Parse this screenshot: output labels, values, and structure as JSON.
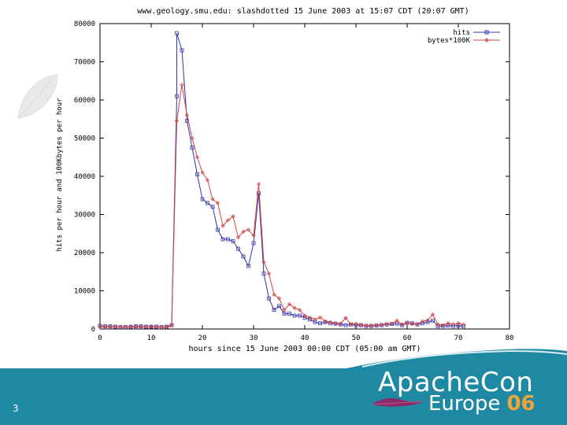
{
  "slide": {
    "number": "3"
  },
  "brand": {
    "line1": "ApacheCon",
    "line2": "Europe",
    "year": "06",
    "accent": "#f2a33a",
    "band_color": "#1f89a4"
  },
  "chart_data": {
    "type": "line",
    "title": "www.geology.smu.edu: slashdotted 15 June 2003 at 15:07 CDT (20:07 GMT)",
    "xlabel": "hours since 15 June 2003 00:00 CDT  (05:00 am GMT)",
    "ylabel": "hits per hour and 100Kbytes per hour",
    "xlim": [
      0,
      80
    ],
    "ylim": [
      0,
      80000
    ],
    "xticks": [
      0,
      10,
      20,
      30,
      40,
      50,
      60,
      70,
      80
    ],
    "yticks": [
      0,
      10000,
      20000,
      30000,
      40000,
      50000,
      60000,
      70000,
      80000
    ],
    "legend_position": "top-right",
    "series": [
      {
        "name": "hits",
        "color": "#3333aa",
        "marker": "square",
        "points": [
          [
            0,
            800
          ],
          [
            1,
            700
          ],
          [
            2,
            700
          ],
          [
            3,
            600
          ],
          [
            4,
            500
          ],
          [
            5,
            500
          ],
          [
            6,
            600
          ],
          [
            7,
            700
          ],
          [
            8,
            700
          ],
          [
            9,
            600
          ],
          [
            10,
            600
          ],
          [
            11,
            600
          ],
          [
            12,
            500
          ],
          [
            13,
            600
          ],
          [
            14,
            1000
          ],
          [
            15,
            61000
          ],
          [
            15,
            77500
          ],
          [
            16,
            73000
          ],
          [
            17,
            54500
          ],
          [
            18,
            47500
          ],
          [
            19,
            40500
          ],
          [
            20,
            34000
          ],
          [
            21,
            33000
          ],
          [
            22,
            32000
          ],
          [
            23,
            26000
          ],
          [
            24,
            23500
          ],
          [
            25,
            23500
          ],
          [
            26,
            23000
          ],
          [
            27,
            21000
          ],
          [
            28,
            19000
          ],
          [
            29,
            16500
          ],
          [
            30,
            22500
          ],
          [
            31,
            35500
          ],
          [
            32,
            14500
          ],
          [
            33,
            8000
          ],
          [
            34,
            5000
          ],
          [
            35,
            6000
          ],
          [
            36,
            4000
          ],
          [
            37,
            4000
          ],
          [
            38,
            3500
          ],
          [
            39,
            3500
          ],
          [
            40,
            3000
          ],
          [
            41,
            2500
          ],
          [
            42,
            1800
          ],
          [
            43,
            1500
          ],
          [
            44,
            1800
          ],
          [
            45,
            1500
          ],
          [
            46,
            1400
          ],
          [
            47,
            1200
          ],
          [
            48,
            1000
          ],
          [
            49,
            1200
          ],
          [
            50,
            1000
          ],
          [
            51,
            1000
          ],
          [
            52,
            800
          ],
          [
            53,
            800
          ],
          [
            54,
            900
          ],
          [
            55,
            1000
          ],
          [
            56,
            1200
          ],
          [
            57,
            1300
          ],
          [
            58,
            1400
          ],
          [
            59,
            1000
          ],
          [
            60,
            1600
          ],
          [
            61,
            1500
          ],
          [
            62,
            1200
          ],
          [
            63,
            1500
          ],
          [
            64,
            1800
          ],
          [
            65,
            2200
          ],
          [
            66,
            700
          ],
          [
            67,
            800
          ],
          [
            68,
            900
          ],
          [
            69,
            800
          ],
          [
            70,
            900
          ],
          [
            71,
            700
          ]
        ]
      },
      {
        "name": "bytes*100K",
        "color": "#cc4444",
        "marker": "diamond",
        "points": [
          [
            0,
            600
          ],
          [
            1,
            700
          ],
          [
            2,
            600
          ],
          [
            3,
            600
          ],
          [
            4,
            500
          ],
          [
            5,
            600
          ],
          [
            6,
            500
          ],
          [
            7,
            600
          ],
          [
            8,
            600
          ],
          [
            9,
            600
          ],
          [
            10,
            600
          ],
          [
            11,
            600
          ],
          [
            12,
            500
          ],
          [
            13,
            500
          ],
          [
            14,
            900
          ],
          [
            15,
            54500
          ],
          [
            16,
            64000
          ],
          [
            17,
            56000
          ],
          [
            18,
            50000
          ],
          [
            19,
            45000
          ],
          [
            20,
            41000
          ],
          [
            21,
            39000
          ],
          [
            22,
            34000
          ],
          [
            23,
            33000
          ],
          [
            24,
            27000
          ],
          [
            25,
            28500
          ],
          [
            26,
            29500
          ],
          [
            27,
            24000
          ],
          [
            28,
            25500
          ],
          [
            29,
            26000
          ],
          [
            30,
            24500
          ],
          [
            31,
            38000
          ],
          [
            32,
            17500
          ],
          [
            33,
            14500
          ],
          [
            34,
            9000
          ],
          [
            35,
            8000
          ],
          [
            36,
            5000
          ],
          [
            37,
            6500
          ],
          [
            38,
            5500
          ],
          [
            39,
            5000
          ],
          [
            40,
            3500
          ],
          [
            41,
            3000
          ],
          [
            42,
            2500
          ],
          [
            43,
            3000
          ],
          [
            44,
            2000
          ],
          [
            45,
            1800
          ],
          [
            46,
            1500
          ],
          [
            47,
            1400
          ],
          [
            48,
            2900
          ],
          [
            49,
            1200
          ],
          [
            50,
            1400
          ],
          [
            51,
            1000
          ],
          [
            52,
            900
          ],
          [
            53,
            900
          ],
          [
            54,
            1000
          ],
          [
            55,
            1100
          ],
          [
            56,
            1300
          ],
          [
            57,
            1400
          ],
          [
            58,
            2200
          ],
          [
            59,
            1200
          ],
          [
            60,
            1700
          ],
          [
            61,
            1300
          ],
          [
            62,
            1300
          ],
          [
            63,
            2000
          ],
          [
            64,
            2300
          ],
          [
            65,
            3800
          ],
          [
            66,
            1200
          ],
          [
            67,
            1000
          ],
          [
            68,
            1500
          ],
          [
            69,
            1200
          ],
          [
            70,
            1500
          ],
          [
            71,
            1100
          ]
        ]
      }
    ]
  }
}
